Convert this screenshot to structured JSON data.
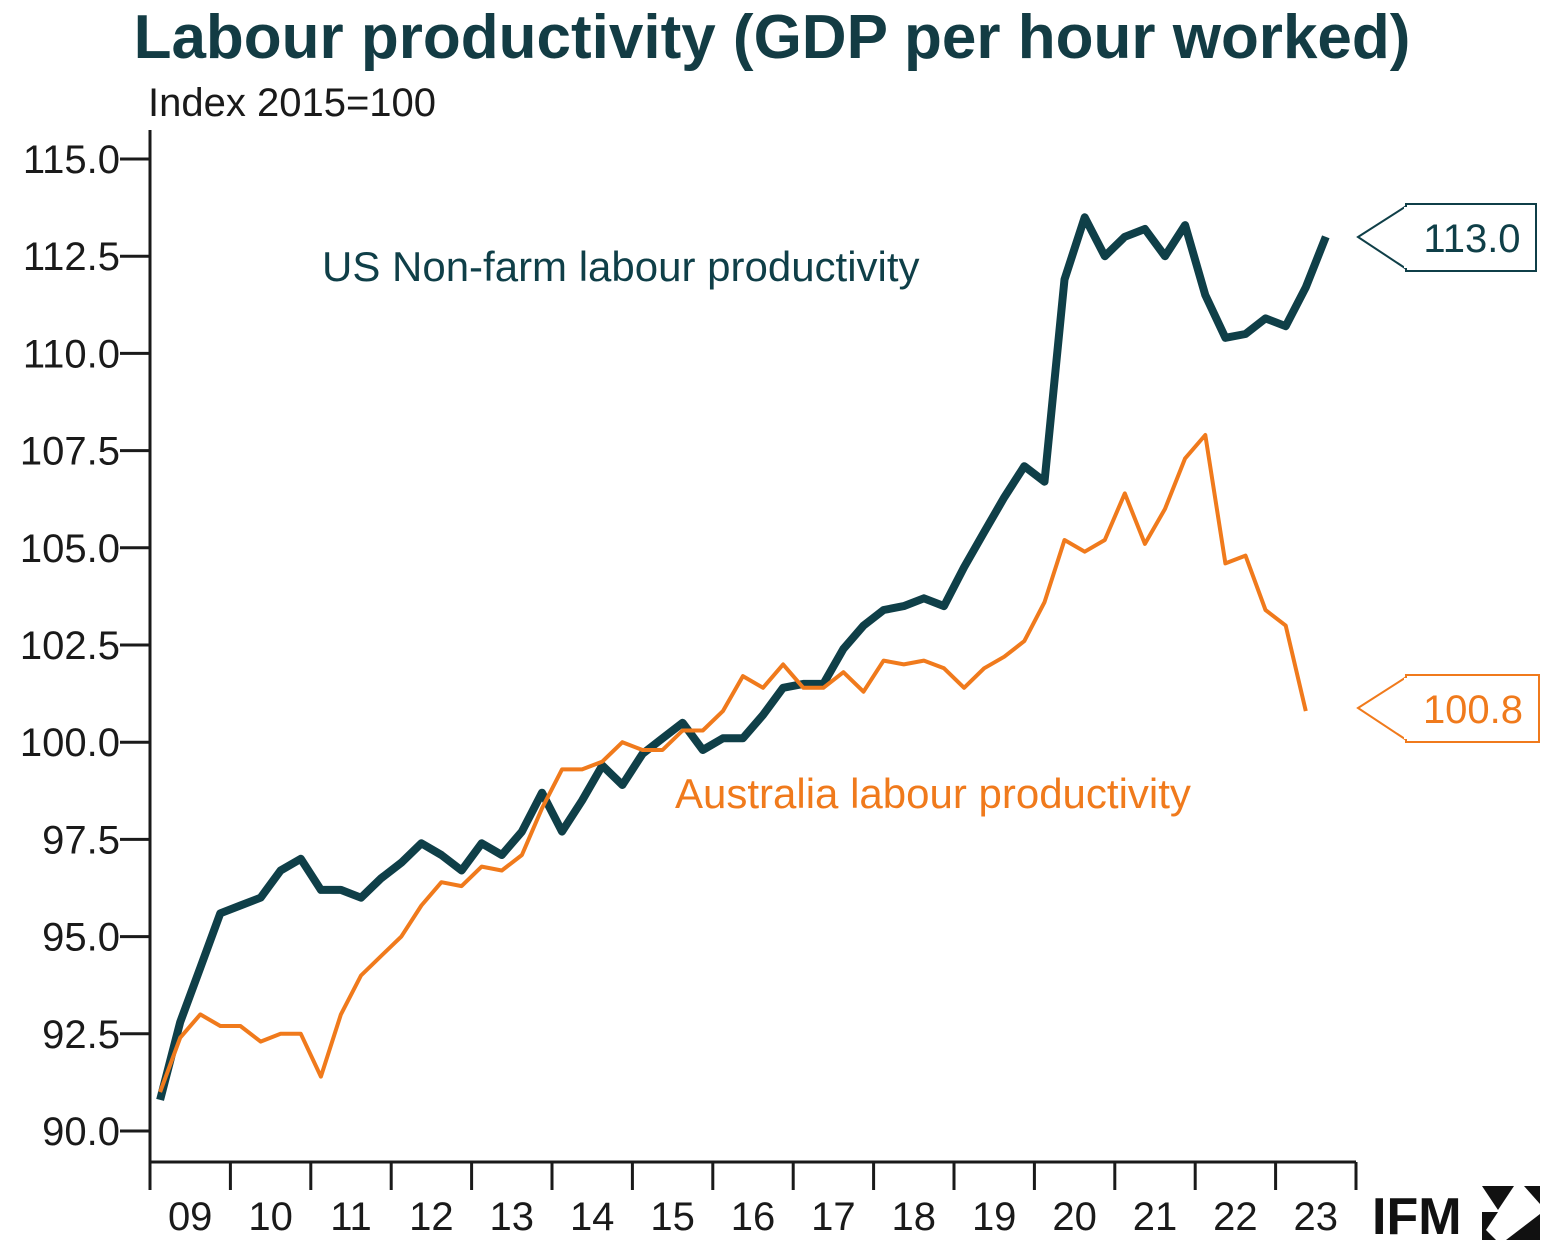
{
  "chart_data": {
    "type": "line",
    "title": "Labour productivity (GDP per hour worked)",
    "subtitle": "Index 2015=100",
    "ylim": [
      90,
      115
    ],
    "y_ticks": [
      "90.0",
      "92.5",
      "95.0",
      "97.5",
      "100.0",
      "102.5",
      "105.0",
      "107.5",
      "110.0",
      "112.5",
      "115.0"
    ],
    "x_tick_labels": [
      "09",
      "10",
      "11",
      "12",
      "13",
      "14",
      "15",
      "16",
      "17",
      "18",
      "19",
      "20",
      "21",
      "22",
      "23"
    ],
    "x_range": [
      2009.0,
      2024.0
    ],
    "grid": false,
    "series": [
      {
        "name": "US Non-farm labour productivity",
        "color": "#0f3f48",
        "x": [
          2009.125,
          2009.375,
          2009.625,
          2009.875,
          2010.125,
          2010.375,
          2010.625,
          2010.875,
          2011.125,
          2011.375,
          2011.625,
          2011.875,
          2012.125,
          2012.375,
          2012.625,
          2012.875,
          2013.125,
          2013.375,
          2013.625,
          2013.875,
          2014.125,
          2014.375,
          2014.625,
          2014.875,
          2015.125,
          2015.375,
          2015.625,
          2015.875,
          2016.125,
          2016.375,
          2016.625,
          2016.875,
          2017.125,
          2017.375,
          2017.625,
          2017.875,
          2018.125,
          2018.375,
          2018.625,
          2018.875,
          2019.125,
          2019.375,
          2019.625,
          2019.875,
          2020.125,
          2020.375,
          2020.625,
          2020.875,
          2021.125,
          2021.375,
          2021.625,
          2021.875,
          2022.125,
          2022.375,
          2022.625,
          2022.875,
          2023.125,
          2023.375,
          2023.625
        ],
        "values": [
          90.8,
          92.8,
          94.2,
          95.6,
          95.8,
          96.0,
          96.7,
          97.0,
          96.2,
          96.2,
          96.0,
          96.5,
          96.9,
          97.4,
          97.1,
          96.7,
          97.4,
          97.1,
          97.7,
          98.7,
          97.7,
          98.5,
          99.4,
          98.9,
          99.7,
          100.1,
          100.5,
          99.8,
          100.1,
          100.1,
          100.7,
          101.4,
          101.5,
          101.5,
          102.4,
          103.0,
          103.4,
          103.5,
          103.7,
          103.5,
          104.5,
          105.4,
          106.3,
          107.1,
          106.7,
          111.9,
          113.5,
          112.5,
          113.0,
          113.2,
          112.5,
          113.3,
          111.5,
          110.4,
          110.5,
          110.9,
          110.7,
          111.7,
          113.0
        ]
      },
      {
        "name": "Australia labour productivity",
        "color": "#f07a1c",
        "x": [
          2009.125,
          2009.375,
          2009.625,
          2009.875,
          2010.125,
          2010.375,
          2010.625,
          2010.875,
          2011.125,
          2011.375,
          2011.625,
          2011.875,
          2012.125,
          2012.375,
          2012.625,
          2012.875,
          2013.125,
          2013.375,
          2013.625,
          2013.875,
          2014.125,
          2014.375,
          2014.625,
          2014.875,
          2015.125,
          2015.375,
          2015.625,
          2015.875,
          2016.125,
          2016.375,
          2016.625,
          2016.875,
          2017.125,
          2017.375,
          2017.625,
          2017.875,
          2018.125,
          2018.375,
          2018.625,
          2018.875,
          2019.125,
          2019.375,
          2019.625,
          2019.875,
          2020.125,
          2020.375,
          2020.625,
          2020.875,
          2021.125,
          2021.375,
          2021.625,
          2021.875,
          2022.125,
          2022.375,
          2022.625,
          2022.875,
          2023.125,
          2023.375
        ],
        "values": [
          91.0,
          92.4,
          93.0,
          92.7,
          92.7,
          92.3,
          92.5,
          92.5,
          91.4,
          93.0,
          94.0,
          94.5,
          95.0,
          95.8,
          96.4,
          96.3,
          96.8,
          96.7,
          97.1,
          98.3,
          99.3,
          99.3,
          99.5,
          100.0,
          99.8,
          99.8,
          100.3,
          100.3,
          100.8,
          101.7,
          101.4,
          102.0,
          101.4,
          101.4,
          101.8,
          101.3,
          102.1,
          102.0,
          102.1,
          101.9,
          101.4,
          101.9,
          102.2,
          102.6,
          103.6,
          105.2,
          104.9,
          105.2,
          106.4,
          105.1,
          106.0,
          107.3,
          107.9,
          104.6,
          104.8,
          103.4,
          103.0,
          100.8
        ]
      }
    ],
    "end_labels": [
      {
        "series": "US Non-farm labour productivity",
        "text": "113.0"
      },
      {
        "series": "Australia labour productivity",
        "text": "100.8"
      }
    ],
    "series_labels": [
      {
        "series": "US Non-farm labour productivity",
        "text": "US Non-farm labour productivity"
      },
      {
        "series": "Australia labour productivity",
        "text": "Australia labour productivity"
      }
    ]
  },
  "logo": {
    "text": "IFM"
  }
}
